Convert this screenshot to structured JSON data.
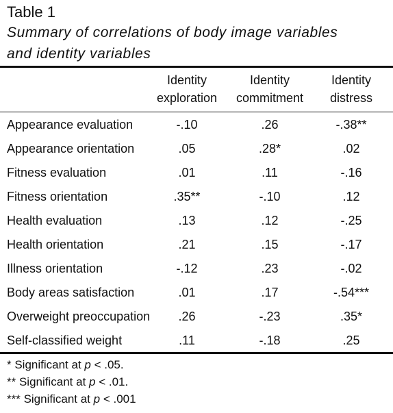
{
  "caption": {
    "label": "Table 1",
    "title_line1": "Summary of correlations of body image variables",
    "title_line2": "and identity variables"
  },
  "columns": [
    {
      "line1": "Identity",
      "line2": "exploration"
    },
    {
      "line1": "Identity",
      "line2": "commitment"
    },
    {
      "line1": "Identity",
      "line2": "distress"
    }
  ],
  "rows": [
    {
      "label": "Appearance evaluation",
      "values": [
        "-.10",
        ".26",
        "-.38**"
      ]
    },
    {
      "label": "Appearance orientation",
      "values": [
        ".05",
        ".28*",
        ".02"
      ]
    },
    {
      "label": "Fitness evaluation",
      "values": [
        ".01",
        ".11",
        "-.16"
      ]
    },
    {
      "label": "Fitness orientation",
      "values": [
        ".35**",
        "-.10",
        ".12"
      ]
    },
    {
      "label": "Health evaluation",
      "values": [
        ".13",
        ".12",
        "-.25"
      ]
    },
    {
      "label": "Health orientation",
      "values": [
        ".21",
        ".15",
        "-.17"
      ]
    },
    {
      "label": "Illness orientation",
      "values": [
        "-.12",
        ".23",
        "-.02"
      ]
    },
    {
      "label": "Body areas satisfaction",
      "values": [
        ".01",
        ".17",
        "-.54***"
      ]
    },
    {
      "label": "Overweight preoccupation",
      "values": [
        ".26",
        "-.23",
        ".35*"
      ]
    },
    {
      "label": "Self-classified weight",
      "values": [
        ".11",
        "-.18",
        ".25"
      ]
    }
  ],
  "notes": [
    {
      "prefix": "* Significant at ",
      "var": "p",
      "suffix": " < .05."
    },
    {
      "prefix": "** Significant at ",
      "var": "p",
      "suffix": " < .01."
    },
    {
      "prefix": "*** Significant at ",
      "var": "p",
      "suffix": " < .001"
    }
  ]
}
